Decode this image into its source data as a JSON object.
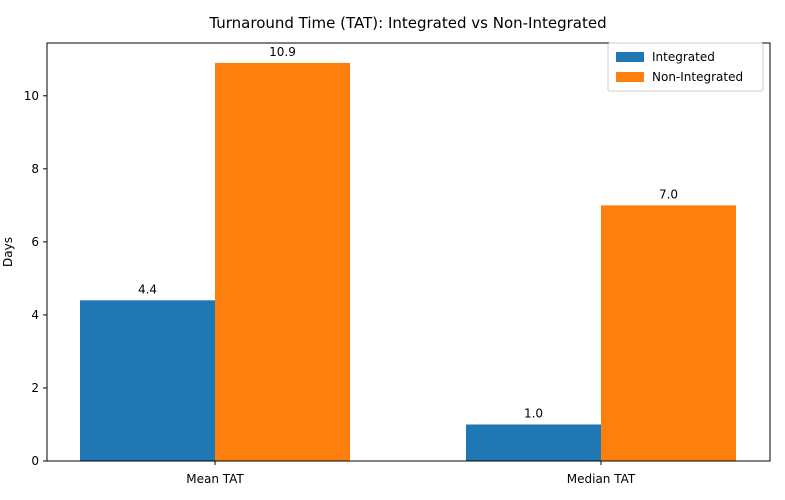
{
  "chart_data": {
    "type": "bar",
    "title": "Turnaround Time (TAT): Integrated vs Non-Integrated",
    "xlabel": "",
    "ylabel": "Days",
    "categories": [
      "Mean TAT",
      "Median TAT"
    ],
    "series": [
      {
        "name": "Integrated",
        "values": [
          4.4,
          1.0
        ],
        "labels": [
          "4.4",
          "1.0"
        ],
        "color": "#1f77b4"
      },
      {
        "name": "Non-Integrated",
        "values": [
          10.9,
          7.0
        ],
        "labels": [
          "10.9",
          "7.0"
        ],
        "color": "#ff7f0e"
      }
    ],
    "ylim": [
      0,
      11.445
    ],
    "yticks": [
      0,
      2,
      4,
      6,
      8,
      10
    ],
    "ytick_labels": [
      "0",
      "2",
      "4",
      "6",
      "8",
      "10"
    ],
    "grid": false,
    "legend": "top-right"
  }
}
